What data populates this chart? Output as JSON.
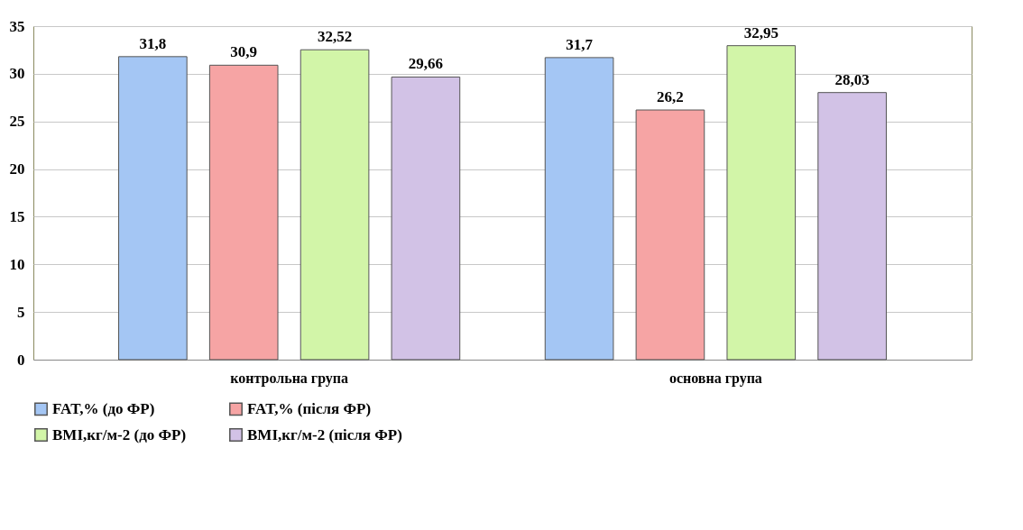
{
  "chart_data": {
    "type": "bar",
    "categories": [
      "контрольна група",
      "основна група"
    ],
    "series": [
      {
        "name": "FAT,% (до ФР)",
        "color": "#a4c6f4",
        "values": [
          31.8,
          31.7
        ],
        "value_labels": [
          "31,8",
          "31,7"
        ]
      },
      {
        "name": "FAT,% (після ФР)",
        "color": "#f6a4a4",
        "values": [
          30.9,
          26.2
        ],
        "value_labels": [
          "30,9",
          "26,2"
        ]
      },
      {
        "name": "BMI,кг/м-2  (до ФР)",
        "color": "#d2f5a8",
        "values": [
          32.52,
          32.95
        ],
        "value_labels": [
          "32,52",
          "32,95"
        ]
      },
      {
        "name": "BMI,кг/м-2 (після ФР)",
        "color": "#d2c2e6",
        "values": [
          29.66,
          28.03
        ],
        "value_labels": [
          "29,66",
          "28,03"
        ]
      }
    ],
    "ylim": [
      0,
      35
    ],
    "yticks": [
      0,
      5,
      10,
      15,
      20,
      25,
      30,
      35
    ],
    "grid": "y",
    "legend": "bottom"
  }
}
